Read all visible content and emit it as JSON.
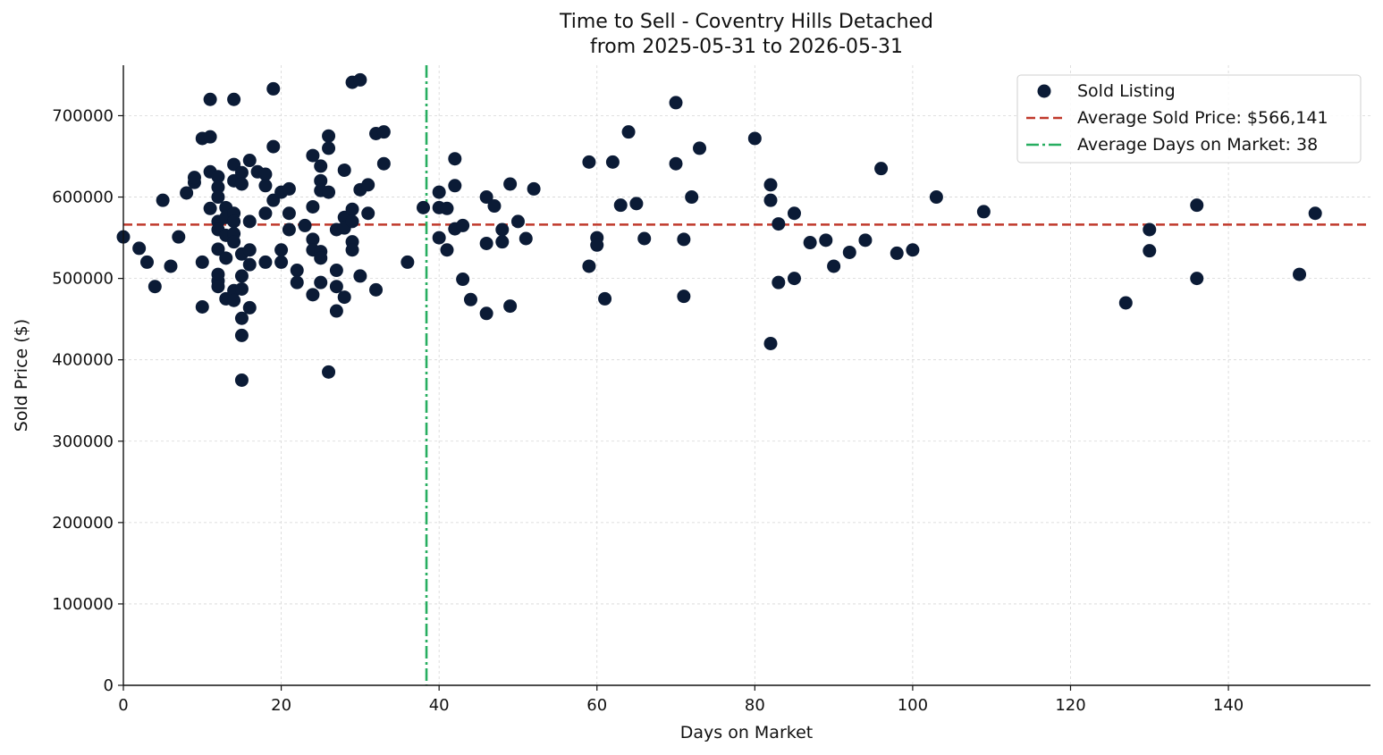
{
  "chart_data": {
    "type": "scatter",
    "title": "Time to Sell - Coventry Hills Detached",
    "subtitle": "from 2025-05-31 to 2026-05-31",
    "xlabel": "Days on Market",
    "ylabel": "Sold Price ($)",
    "xlim": [
      0,
      158
    ],
    "ylim": [
      0,
      762000
    ],
    "xticks": [
      0,
      20,
      40,
      60,
      80,
      100,
      120,
      140
    ],
    "yticks": [
      0,
      100000,
      200000,
      300000,
      400000,
      500000,
      600000,
      700000
    ],
    "grid": true,
    "legend_position": "top-right",
    "colors": {
      "points": "#0b1b36",
      "avg_price_line": "#c0392b",
      "avg_days_line": "#27ae60"
    },
    "legend": [
      {
        "label": "Sold Listing",
        "kind": "marker"
      },
      {
        "label": "Average Sold Price: $566,141",
        "kind": "dashed"
      },
      {
        "label": "Average Days on Market: 38",
        "kind": "dashdot"
      }
    ],
    "average_price": 566141,
    "average_days": 38.4,
    "series": [
      {
        "name": "Sold Listing",
        "points": [
          [
            0,
            551000
          ],
          [
            2,
            537000
          ],
          [
            3,
            520000
          ],
          [
            4,
            490000
          ],
          [
            5,
            596000
          ],
          [
            6,
            515000
          ],
          [
            7,
            551000
          ],
          [
            8,
            605000
          ],
          [
            9,
            618000
          ],
          [
            9,
            624000
          ],
          [
            10,
            672000
          ],
          [
            10,
            465000
          ],
          [
            10,
            520000
          ],
          [
            11,
            674000
          ],
          [
            11,
            720000
          ],
          [
            11,
            631000
          ],
          [
            11,
            586000
          ],
          [
            12,
            625000
          ],
          [
            12,
            612000
          ],
          [
            12,
            600000
          ],
          [
            12,
            570000
          ],
          [
            12,
            560000
          ],
          [
            12,
            536000
          ],
          [
            12,
            505000
          ],
          [
            12,
            497000
          ],
          [
            12,
            490000
          ],
          [
            13,
            587000
          ],
          [
            13,
            575000
          ],
          [
            13,
            553000
          ],
          [
            13,
            525000
          ],
          [
            13,
            475000
          ],
          [
            14,
            720000
          ],
          [
            14,
            640000
          ],
          [
            14,
            620000
          ],
          [
            14,
            580000
          ],
          [
            14,
            570000
          ],
          [
            14,
            555000
          ],
          [
            14,
            545000
          ],
          [
            14,
            485000
          ],
          [
            14,
            473000
          ],
          [
            15,
            630000
          ],
          [
            15,
            616000
          ],
          [
            15,
            530000
          ],
          [
            15,
            503000
          ],
          [
            15,
            487000
          ],
          [
            15,
            451000
          ],
          [
            15,
            430000
          ],
          [
            15,
            375000
          ],
          [
            16,
            645000
          ],
          [
            16,
            570000
          ],
          [
            16,
            535000
          ],
          [
            16,
            517000
          ],
          [
            16,
            464000
          ],
          [
            17,
            631000
          ],
          [
            18,
            628000
          ],
          [
            18,
            614000
          ],
          [
            18,
            580000
          ],
          [
            18,
            520000
          ],
          [
            19,
            733000
          ],
          [
            19,
            662000
          ],
          [
            19,
            596000
          ],
          [
            20,
            606000
          ],
          [
            20,
            535000
          ],
          [
            20,
            520000
          ],
          [
            21,
            610000
          ],
          [
            21,
            580000
          ],
          [
            21,
            560000
          ],
          [
            22,
            510000
          ],
          [
            22,
            495000
          ],
          [
            23,
            565000
          ],
          [
            24,
            651000
          ],
          [
            24,
            588000
          ],
          [
            24,
            548000
          ],
          [
            24,
            535000
          ],
          [
            24,
            480000
          ],
          [
            25,
            638000
          ],
          [
            25,
            620000
          ],
          [
            25,
            608000
          ],
          [
            25,
            533000
          ],
          [
            25,
            525000
          ],
          [
            25,
            495000
          ],
          [
            26,
            675000
          ],
          [
            26,
            660000
          ],
          [
            26,
            606000
          ],
          [
            26,
            385000
          ],
          [
            27,
            560000
          ],
          [
            27,
            510000
          ],
          [
            27,
            490000
          ],
          [
            27,
            460000
          ],
          [
            28,
            633000
          ],
          [
            28,
            575000
          ],
          [
            28,
            562000
          ],
          [
            28,
            477000
          ],
          [
            29,
            741000
          ],
          [
            29,
            585000
          ],
          [
            29,
            570000
          ],
          [
            29,
            545000
          ],
          [
            29,
            535000
          ],
          [
            30,
            744000
          ],
          [
            30,
            609000
          ],
          [
            30,
            503000
          ],
          [
            31,
            615000
          ],
          [
            31,
            580000
          ],
          [
            32,
            678000
          ],
          [
            32,
            486000
          ],
          [
            33,
            680000
          ],
          [
            33,
            641000
          ],
          [
            36,
            520000
          ],
          [
            38,
            587000
          ],
          [
            40,
            606000
          ],
          [
            40,
            587000
          ],
          [
            40,
            550000
          ],
          [
            41,
            586000
          ],
          [
            41,
            535000
          ],
          [
            42,
            647000
          ],
          [
            42,
            614000
          ],
          [
            42,
            561000
          ],
          [
            43,
            565000
          ],
          [
            43,
            499000
          ],
          [
            44,
            474000
          ],
          [
            46,
            600000
          ],
          [
            46,
            543000
          ],
          [
            46,
            457000
          ],
          [
            47,
            589000
          ],
          [
            48,
            560000
          ],
          [
            48,
            545000
          ],
          [
            49,
            616000
          ],
          [
            49,
            466000
          ],
          [
            50,
            570000
          ],
          [
            51,
            549000
          ],
          [
            52,
            610000
          ],
          [
            59,
            643000
          ],
          [
            59,
            515000
          ],
          [
            60,
            550000
          ],
          [
            60,
            541000
          ],
          [
            61,
            475000
          ],
          [
            62,
            643000
          ],
          [
            63,
            590000
          ],
          [
            64,
            680000
          ],
          [
            65,
            592000
          ],
          [
            66,
            549000
          ],
          [
            70,
            716000
          ],
          [
            70,
            641000
          ],
          [
            71,
            548000
          ],
          [
            71,
            478000
          ],
          [
            72,
            600000
          ],
          [
            73,
            660000
          ],
          [
            80,
            672000
          ],
          [
            82,
            615000
          ],
          [
            82,
            596000
          ],
          [
            82,
            420000
          ],
          [
            83,
            567000
          ],
          [
            83,
            495000
          ],
          [
            85,
            580000
          ],
          [
            85,
            500000
          ],
          [
            87,
            544000
          ],
          [
            89,
            547000
          ],
          [
            90,
            515000
          ],
          [
            92,
            532000
          ],
          [
            94,
            547000
          ],
          [
            96,
            635000
          ],
          [
            98,
            531000
          ],
          [
            100,
            535000
          ],
          [
            103,
            600000
          ],
          [
            109,
            582000
          ],
          [
            127,
            470000
          ],
          [
            130,
            560000
          ],
          [
            130,
            534000
          ],
          [
            136,
            590000
          ],
          [
            136,
            500000
          ],
          [
            149,
            505000
          ],
          [
            151,
            580000
          ]
        ]
      }
    ]
  }
}
